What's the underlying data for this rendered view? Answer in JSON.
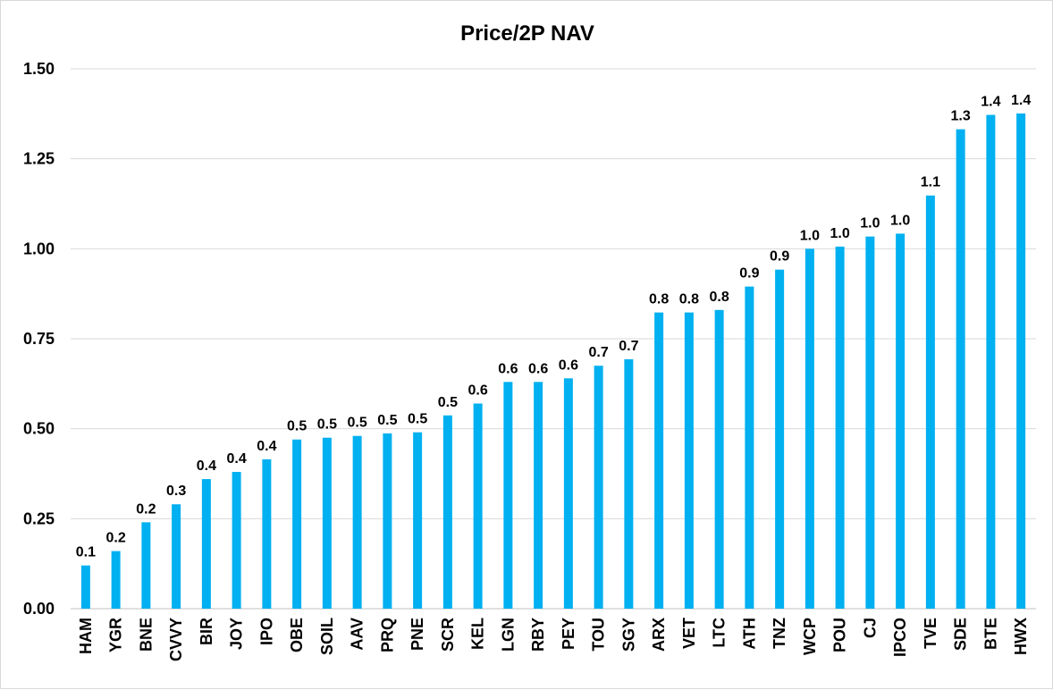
{
  "chart_data": {
    "type": "bar",
    "title": "Price/2P NAV",
    "xlabel": "",
    "ylabel": "",
    "ylim": [
      0,
      1.5
    ],
    "yticks": [
      "0.00",
      "0.25",
      "0.50",
      "0.75",
      "1.00",
      "1.25",
      "1.50"
    ],
    "grid": true,
    "legend": "none",
    "bar_color": "#00B0F0",
    "categories": [
      "HAM",
      "YGR",
      "BNE",
      "CVVY",
      "BIR",
      "JOY",
      "IPO",
      "OBE",
      "SOIL",
      "AAV",
      "PRQ",
      "PNE",
      "SCR",
      "KEL",
      "LGN",
      "RBY",
      "PEY",
      "TOU",
      "SGY",
      "ARX",
      "VET",
      "LTC",
      "ATH",
      "TNZ",
      "WCP",
      "POU",
      "CJ",
      "IPCO",
      "TVE",
      "SDE",
      "BTE",
      "HWX"
    ],
    "values": [
      0.12,
      0.16,
      0.24,
      0.29,
      0.36,
      0.38,
      0.415,
      0.47,
      0.475,
      0.48,
      0.487,
      0.49,
      0.537,
      0.57,
      0.63,
      0.63,
      0.64,
      0.675,
      0.693,
      0.823,
      0.823,
      0.83,
      0.895,
      0.942,
      1.0,
      1.006,
      1.034,
      1.042,
      1.148,
      1.332,
      1.372,
      1.376
    ],
    "data_labels": [
      "0.1",
      "0.2",
      "0.2",
      "0.3",
      "0.4",
      "0.4",
      "0.4",
      "0.5",
      "0.5",
      "0.5",
      "0.5",
      "0.5",
      "0.5",
      "0.6",
      "0.6",
      "0.6",
      "0.6",
      "0.7",
      "0.7",
      "0.8",
      "0.8",
      "0.8",
      "0.9",
      "0.9",
      "1.0",
      "1.0",
      "1.0",
      "1.0",
      "1.1",
      "1.3",
      "1.4",
      "1.4"
    ]
  }
}
